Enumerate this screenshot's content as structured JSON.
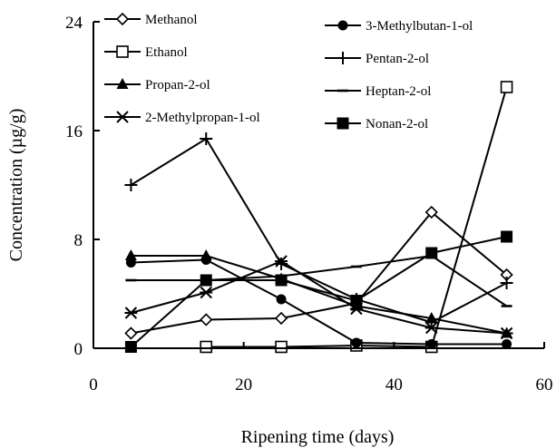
{
  "chart_data": {
    "type": "line",
    "xlabel": "Ripening time (days)",
    "ylabel": "Concentration (µg/g)",
    "xlim": [
      0,
      60
    ],
    "ylim": [
      0,
      24
    ],
    "xticks": [
      0,
      20,
      40,
      60
    ],
    "yticks": [
      0,
      8,
      16,
      24
    ],
    "grid": false,
    "legend_position": "top",
    "series": [
      {
        "name": "Methanol",
        "marker": "diamond-open",
        "points": [
          [
            5,
            1.1
          ],
          [
            15,
            2.1
          ],
          [
            25,
            2.2
          ],
          [
            35,
            3.3
          ],
          [
            45,
            10.0
          ],
          [
            55,
            5.4
          ]
        ]
      },
      {
        "name": "Ethanol",
        "marker": "square-open",
        "points": [
          [
            15,
            0.1
          ],
          [
            25,
            0.1
          ],
          [
            35,
            0.2
          ],
          [
            45,
            0.1
          ],
          [
            55,
            19.2
          ]
        ]
      },
      {
        "name": "Propan-2-ol",
        "marker": "triangle-filled",
        "points": [
          [
            5,
            6.8
          ],
          [
            15,
            6.8
          ],
          [
            25,
            5.1
          ],
          [
            35,
            3.1
          ],
          [
            45,
            2.2
          ],
          [
            55,
            1.1
          ]
        ]
      },
      {
        "name": "2-Methylpropan-1-ol",
        "marker": "x-star",
        "points": [
          [
            5,
            2.6
          ],
          [
            15,
            4.1
          ],
          [
            25,
            6.4
          ],
          [
            35,
            2.9
          ],
          [
            45,
            1.5
          ],
          [
            55,
            1.1
          ]
        ]
      },
      {
        "name": "3-Methylbutan-1-ol",
        "marker": "circle-filled",
        "points": [
          [
            5,
            6.3
          ],
          [
            15,
            6.5
          ],
          [
            25,
            3.6
          ],
          [
            35,
            0.4
          ],
          [
            45,
            0.3
          ],
          [
            55,
            0.3
          ]
        ]
      },
      {
        "name": "Pentan-2-ol",
        "marker": "plus",
        "points": [
          [
            5,
            12.0
          ],
          [
            15,
            15.4
          ],
          [
            25,
            6.2
          ],
          [
            35,
            3.6
          ],
          [
            45,
            1.9
          ],
          [
            55,
            4.8
          ]
        ]
      },
      {
        "name": "Heptan-2-ol",
        "marker": "dash",
        "points": [
          [
            5,
            5.0
          ],
          [
            15,
            5.0
          ],
          [
            25,
            5.3
          ],
          [
            35,
            6.0
          ],
          [
            45,
            6.8
          ],
          [
            55,
            3.1
          ]
        ]
      },
      {
        "name": "Nonan-2-ol",
        "marker": "square-filled",
        "points": [
          [
            5,
            0.1
          ],
          [
            15,
            5.0
          ],
          [
            25,
            5.0
          ],
          [
            35,
            3.5
          ],
          [
            45,
            7.0
          ],
          [
            55,
            8.2
          ]
        ]
      }
    ],
    "legend": {
      "left": [
        "Methanol",
        "Ethanol",
        "Propan-2-ol",
        "2-Methylpropan-1-ol"
      ],
      "right": [
        "3-Methylbutan-1-ol",
        "Pentan-2-ol",
        "Heptan-2-ol",
        "Nonan-2-ol"
      ]
    }
  }
}
